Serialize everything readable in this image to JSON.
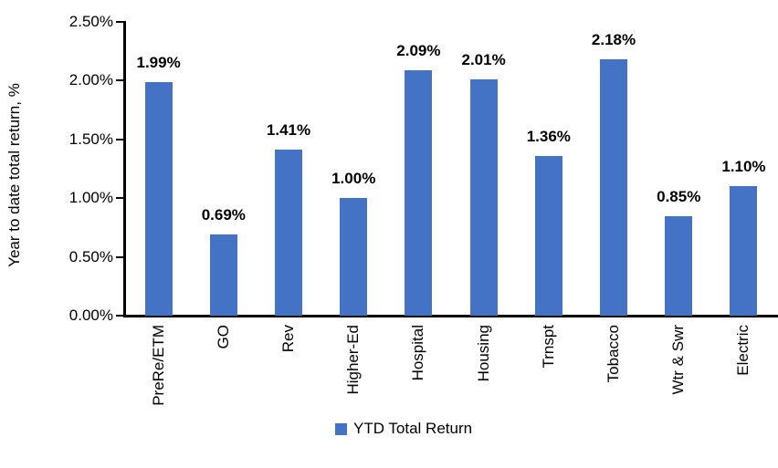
{
  "chart_data": {
    "type": "bar",
    "title": "",
    "ylabel": "Year to date total return, %",
    "xlabel": "",
    "ylim": [
      0,
      2.5
    ],
    "grid": false,
    "legend_position": "bottom",
    "legend_label": "YTD Total Return",
    "bar_color": "#4472C4",
    "axis_color": "#000000",
    "categories": [
      "PreRe/ETM",
      "GO",
      "Rev",
      "Higher-Ed",
      "Hospital",
      "Housing",
      "Trnspt",
      "Tobacco",
      "Wtr & Swr",
      "Electric"
    ],
    "series": [
      {
        "name": "YTD Total Return",
        "values": [
          1.99,
          0.69,
          1.41,
          1.0,
          2.09,
          2.01,
          1.36,
          2.18,
          0.85,
          1.1
        ],
        "data_labels": [
          "1.99%",
          "0.69%",
          "1.41%",
          "1.00%",
          "2.09%",
          "2.01%",
          "1.36%",
          "2.18%",
          "0.85%",
          "1.10%"
        ]
      }
    ],
    "yticks": [
      {
        "value": 2.5,
        "label": "2.50%"
      },
      {
        "value": 2.0,
        "label": "2.00%"
      },
      {
        "value": 1.5,
        "label": "1.50%"
      },
      {
        "value": 1.0,
        "label": "1.00%"
      },
      {
        "value": 0.5,
        "label": "0.50%"
      },
      {
        "value": 0.0,
        "label": "0.00%"
      }
    ]
  }
}
